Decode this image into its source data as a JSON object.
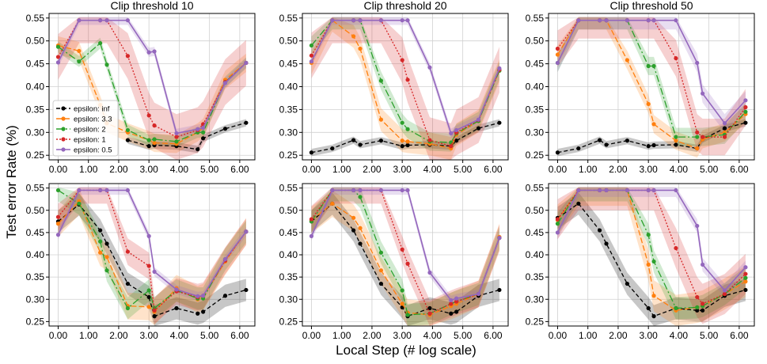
{
  "figure": {
    "xlabel": "Local Step (# log scale)",
    "ylabel": "Test error Rate (%)"
  },
  "colors": {
    "epsilon: inf": "#000000",
    "epsilon: 3.3": "#ff7f0e",
    "epsilon: 2": "#2ca02c",
    "epsilon: 1": "#d62728",
    "epsilon: 0.5": "#9467bd"
  },
  "chart_data": [
    {
      "type": "line",
      "title": "Clip threshold 10",
      "legend": "lower-left",
      "x": [
        0,
        0.69,
        1.39,
        1.61,
        2.3,
        3.0,
        3.18,
        3.91,
        4.61,
        4.79,
        5.52,
        6.21
      ],
      "xticks": [
        "0.00",
        "1.00",
        "2.00",
        "3.00",
        "4.00",
        "5.00",
        "6.00"
      ],
      "yticks": [
        "0.25",
        "0.30",
        "0.35",
        "0.40",
        "0.45",
        "0.50",
        "0.55"
      ],
      "xlim": [
        -0.3,
        6.5
      ],
      "ylim": [
        0.24,
        0.56
      ],
      "series": [
        {
          "name": "epsilon: inf",
          "band": 0.008,
          "values": [
            null,
            null,
            null,
            null,
            0.283,
            0.27,
            0.272,
            0.27,
            0.263,
            0.287,
            0.308,
            0.321
          ]
        },
        {
          "name": "epsilon: 3.3",
          "band": 0.02,
          "values": [
            0.49,
            0.478,
            0.36,
            0.32,
            0.3,
            0.283,
            0.277,
            0.275,
            0.3,
            0.31,
            0.415,
            0.452
          ]
        },
        {
          "name": "epsilon: 2",
          "band": 0.012,
          "values": [
            0.487,
            0.455,
            0.495,
            0.448,
            0.305,
            0.283,
            0.285,
            0.28,
            0.3,
            0.3,
            0.41,
            0.452
          ]
        },
        {
          "name": "epsilon: 1",
          "band": 0.05,
          "values": [
            0.465,
            0.545,
            0.545,
            0.545,
            0.467,
            0.337,
            0.315,
            0.29,
            0.305,
            0.318,
            0.41,
            0.452
          ]
        },
        {
          "name": "epsilon: 0.5",
          "band": 0.01,
          "values": [
            0.453,
            0.545,
            0.545,
            0.545,
            0.545,
            0.475,
            0.477,
            0.298,
            0.307,
            0.31,
            0.408,
            0.452
          ]
        }
      ]
    },
    {
      "type": "line",
      "title": "Clip threshold 20",
      "legend": "none",
      "x": [
        0,
        0.69,
        1.39,
        1.61,
        2.3,
        3.0,
        3.18,
        3.91,
        4.61,
        4.79,
        5.52,
        6.21
      ],
      "xticks": [
        "0.00",
        "1.00",
        "2.00",
        "3.00",
        "4.00",
        "5.00",
        "6.00"
      ],
      "yticks": [
        "0.25",
        "0.30",
        "0.35",
        "0.40",
        "0.45",
        "0.50",
        "0.55"
      ],
      "xlim": [
        -0.3,
        6.5
      ],
      "ylim": [
        0.24,
        0.56
      ],
      "series": [
        {
          "name": "epsilon: inf",
          "band": 0.008,
          "values": [
            0.256,
            0.265,
            0.283,
            0.273,
            0.282,
            0.27,
            0.272,
            0.273,
            0.27,
            0.282,
            0.309,
            0.321
          ]
        },
        {
          "name": "epsilon: 3.3",
          "band": 0.025,
          "values": [
            0.452,
            0.545,
            0.51,
            0.483,
            0.328,
            0.282,
            0.28,
            0.275,
            0.265,
            0.295,
            0.325,
            0.435
          ]
        },
        {
          "name": "epsilon: 2",
          "band": 0.02,
          "values": [
            0.49,
            0.545,
            0.545,
            0.545,
            0.413,
            0.321,
            0.307,
            0.28,
            0.278,
            0.298,
            0.325,
            0.435
          ]
        },
        {
          "name": "epsilon: 1",
          "band": 0.05,
          "values": [
            0.468,
            0.545,
            0.545,
            0.545,
            0.545,
            0.458,
            0.415,
            0.283,
            0.27,
            0.3,
            0.327,
            0.437
          ]
        },
        {
          "name": "epsilon: 0.5",
          "band": 0.01,
          "values": [
            0.455,
            0.545,
            0.545,
            0.545,
            0.545,
            0.545,
            0.545,
            0.442,
            0.298,
            0.305,
            0.328,
            0.44
          ]
        }
      ]
    },
    {
      "type": "line",
      "title": "Clip threshold 50",
      "legend": "none",
      "x": [
        0,
        0.69,
        1.39,
        1.61,
        2.3,
        3.0,
        3.18,
        3.91,
        4.61,
        4.79,
        5.52,
        6.21
      ],
      "xticks": [
        "0.00",
        "1.00",
        "2.00",
        "3.00",
        "4.00",
        "5.00",
        "6.00"
      ],
      "yticks": [
        "0.25",
        "0.30",
        "0.35",
        "0.40",
        "0.45",
        "0.50",
        "0.55"
      ],
      "xlim": [
        -0.3,
        6.5
      ],
      "ylim": [
        0.24,
        0.56
      ],
      "series": [
        {
          "name": "epsilon: inf",
          "band": 0.008,
          "values": [
            0.256,
            0.265,
            0.283,
            0.273,
            0.282,
            0.27,
            0.272,
            0.273,
            0.265,
            0.285,
            0.309,
            0.321
          ]
        },
        {
          "name": "epsilon: 3.3",
          "band": 0.02,
          "values": [
            0.47,
            0.545,
            0.545,
            0.545,
            0.458,
            0.362,
            0.318,
            0.282,
            0.265,
            0.285,
            0.3,
            0.34
          ]
        },
        {
          "name": "epsilon: 2",
          "band": 0.02,
          "values": [
            0.452,
            0.545,
            0.545,
            0.545,
            0.545,
            0.445,
            0.445,
            0.29,
            0.29,
            0.29,
            0.295,
            0.345
          ]
        },
        {
          "name": "epsilon: 1",
          "band": 0.04,
          "values": [
            0.483,
            0.545,
            0.545,
            0.545,
            0.545,
            0.545,
            0.545,
            0.462,
            0.3,
            0.29,
            0.29,
            0.355
          ]
        },
        {
          "name": "epsilon: 0.5",
          "band": 0.02,
          "values": [
            0.452,
            0.545,
            0.545,
            0.545,
            0.545,
            0.545,
            0.545,
            0.545,
            0.452,
            0.385,
            0.32,
            0.37
          ]
        }
      ]
    },
    {
      "type": "line",
      "title": "",
      "legend": "none",
      "x": [
        0,
        0.69,
        1.39,
        1.61,
        2.3,
        3.0,
        3.18,
        3.91,
        4.61,
        4.79,
        5.52,
        6.21
      ],
      "xticks": [
        "0.00",
        "1.00",
        "2.00",
        "3.00",
        "4.00",
        "5.00",
        "6.00"
      ],
      "yticks": [
        "0.25",
        "0.30",
        "0.35",
        "0.40",
        "0.45",
        "0.50",
        "0.55"
      ],
      "xlim": [
        -0.3,
        6.5
      ],
      "ylim": [
        0.24,
        0.56
      ],
      "series": [
        {
          "name": "epsilon: inf",
          "band": 0.025,
          "values": [
            0.475,
            0.513,
            0.455,
            0.425,
            0.335,
            0.305,
            0.262,
            0.28,
            0.268,
            0.272,
            0.308,
            0.321
          ]
        },
        {
          "name": "epsilon: 3.3",
          "band": 0.03,
          "values": [
            0.47,
            0.52,
            0.405,
            0.395,
            0.285,
            0.283,
            0.272,
            0.325,
            0.3,
            0.305,
            0.385,
            0.452
          ]
        },
        {
          "name": "epsilon: 2",
          "band": 0.025,
          "values": [
            0.545,
            0.515,
            0.43,
            0.365,
            0.28,
            0.32,
            0.28,
            0.32,
            0.302,
            0.302,
            0.39,
            0.452
          ]
        },
        {
          "name": "epsilon: 1",
          "band": 0.03,
          "values": [
            0.485,
            0.545,
            0.545,
            0.545,
            0.407,
            0.375,
            0.275,
            0.318,
            0.305,
            0.308,
            0.387,
            0.452
          ]
        },
        {
          "name": "epsilon: 0.5",
          "band": 0.01,
          "values": [
            0.445,
            0.545,
            0.545,
            0.545,
            0.545,
            0.442,
            0.362,
            0.322,
            0.307,
            0.308,
            0.39,
            0.452
          ]
        }
      ]
    },
    {
      "type": "line",
      "title": "",
      "legend": "none",
      "x": [
        0,
        0.69,
        1.39,
        1.61,
        2.3,
        3.0,
        3.18,
        3.91,
        4.61,
        4.79,
        5.52,
        6.21
      ],
      "xticks": [
        "0.00",
        "1.00",
        "2.00",
        "3.00",
        "4.00",
        "5.00",
        "6.00"
      ],
      "yticks": [
        "0.25",
        "0.30",
        "0.35",
        "0.40",
        "0.45",
        "0.50",
        "0.55"
      ],
      "xlim": [
        -0.3,
        6.5
      ],
      "ylim": [
        0.24,
        0.56
      ],
      "series": [
        {
          "name": "epsilon: inf",
          "band": 0.025,
          "values": [
            0.475,
            0.515,
            0.455,
            0.425,
            0.335,
            0.282,
            0.262,
            0.28,
            0.268,
            0.272,
            0.308,
            0.321
          ]
        },
        {
          "name": "epsilon: 3.3",
          "band": 0.03,
          "values": [
            0.478,
            0.515,
            0.483,
            0.46,
            0.365,
            0.29,
            0.27,
            0.265,
            0.285,
            0.29,
            0.312,
            0.44
          ]
        },
        {
          "name": "epsilon: 2",
          "band": 0.025,
          "values": [
            0.475,
            0.545,
            0.545,
            0.53,
            0.405,
            0.32,
            0.265,
            0.268,
            0.29,
            0.295,
            0.312,
            0.438
          ]
        },
        {
          "name": "epsilon: 1",
          "band": 0.03,
          "values": [
            0.48,
            0.545,
            0.545,
            0.545,
            0.545,
            0.412,
            0.38,
            0.268,
            0.29,
            0.295,
            0.312,
            0.438
          ]
        },
        {
          "name": "epsilon: 0.5",
          "band": 0.01,
          "values": [
            0.442,
            0.545,
            0.545,
            0.545,
            0.545,
            0.545,
            0.545,
            0.36,
            0.298,
            0.302,
            0.312,
            0.438
          ]
        }
      ]
    },
    {
      "type": "line",
      "title": "",
      "legend": "none",
      "x": [
        0,
        0.69,
        1.39,
        1.61,
        2.3,
        3.0,
        3.18,
        3.91,
        4.61,
        4.79,
        5.52,
        6.21
      ],
      "xticks": [
        "0.00",
        "1.00",
        "2.00",
        "3.00",
        "4.00",
        "5.00",
        "6.00"
      ],
      "yticks": [
        "0.25",
        "0.30",
        "0.35",
        "0.40",
        "0.45",
        "0.50",
        "0.55"
      ],
      "xlim": [
        -0.3,
        6.5
      ],
      "ylim": [
        0.24,
        0.56
      ],
      "series": [
        {
          "name": "epsilon: inf",
          "band": 0.025,
          "values": [
            0.483,
            0.515,
            0.455,
            0.425,
            0.335,
            0.28,
            0.262,
            0.28,
            0.275,
            0.275,
            0.308,
            0.321
          ]
        },
        {
          "name": "epsilon: 3.3",
          "band": 0.035,
          "values": [
            0.478,
            0.545,
            0.545,
            0.545,
            0.545,
            0.378,
            0.308,
            0.275,
            0.282,
            0.285,
            0.312,
            0.34
          ]
        },
        {
          "name": "epsilon: 2",
          "band": 0.025,
          "values": [
            0.47,
            0.545,
            0.545,
            0.545,
            0.545,
            0.445,
            0.385,
            0.28,
            0.282,
            0.285,
            0.312,
            0.348
          ]
        },
        {
          "name": "epsilon: 1",
          "band": 0.045,
          "values": [
            0.48,
            0.545,
            0.545,
            0.545,
            0.545,
            0.545,
            0.545,
            0.415,
            0.305,
            0.29,
            0.312,
            0.357
          ]
        },
        {
          "name": "epsilon: 0.5",
          "band": 0.015,
          "values": [
            0.45,
            0.545,
            0.545,
            0.545,
            0.545,
            0.545,
            0.545,
            0.545,
            0.465,
            0.378,
            0.32,
            0.372
          ]
        }
      ]
    }
  ]
}
